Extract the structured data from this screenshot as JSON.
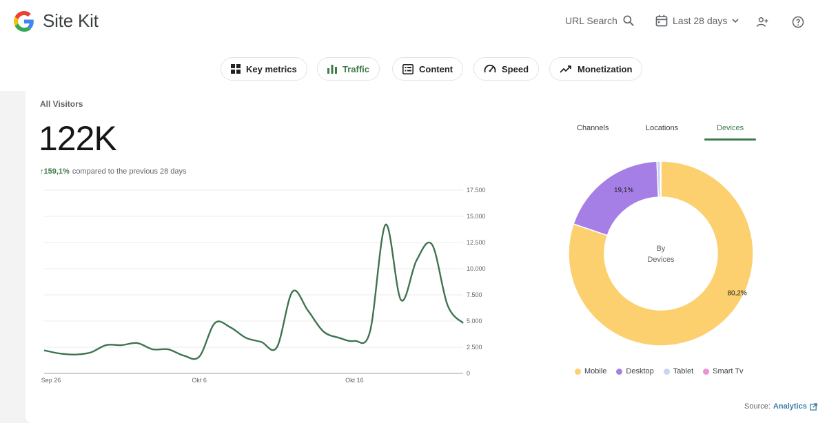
{
  "header": {
    "brand": "Site Kit",
    "url_search": "URL Search",
    "date_range": "Last 28 days"
  },
  "nav": {
    "chips": [
      {
        "label": "Key metrics",
        "icon": "grid-icon"
      },
      {
        "label": "Traffic",
        "icon": "bar-chart-icon",
        "active": true
      },
      {
        "label": "Content",
        "icon": "list-icon"
      },
      {
        "label": "Speed",
        "icon": "speedometer-icon"
      },
      {
        "label": "Monetization",
        "icon": "trending-up-icon"
      }
    ]
  },
  "visitors": {
    "section_title": "All Visitors",
    "total": "122K",
    "change": "↑159,1%",
    "change_suffix": "compared to the previous 28 days"
  },
  "tabs": {
    "channels": "Channels",
    "locations": "Locations",
    "devices": "Devices"
  },
  "donut": {
    "center_line1": "By",
    "center_line2": "Devices"
  },
  "source": {
    "label": "Source:",
    "link": "Analytics"
  },
  "colors": {
    "accent": "#3d7a4a",
    "line": "#3f7350",
    "mobile": "#fcd06f",
    "desktop": "#a67fe6",
    "tablet": "#c9d3f2",
    "smart_tv": "#f08fd1"
  },
  "chart_data": [
    {
      "type": "line",
      "x_ticks": [
        "Sep 26",
        "Okt 6",
        "Okt 16"
      ],
      "y_ticks": [
        "17.500",
        "15.000",
        "12.500",
        "10.000",
        "7.500",
        "5.000",
        "2.500",
        "0"
      ],
      "ylim": [
        0,
        17500
      ],
      "grid": true,
      "series": [
        {
          "values": [
            2200,
            1900,
            1800,
            2000,
            2700,
            2700,
            2900,
            2300,
            2300,
            1700,
            1600,
            4800,
            4400,
            3400,
            3000,
            2500,
            7800,
            6000,
            4000,
            3400,
            3100,
            4000,
            14200,
            7000,
            10800,
            12300,
            6500,
            4800
          ]
        }
      ]
    },
    {
      "type": "pie",
      "categories": [
        "Mobile",
        "Desktop",
        "Tablet",
        "Smart Tv"
      ],
      "values": [
        80.2,
        19.1,
        0.6,
        0.1
      ],
      "slice_labels": [
        "80,2%",
        "19,1%",
        "",
        ""
      ]
    }
  ]
}
